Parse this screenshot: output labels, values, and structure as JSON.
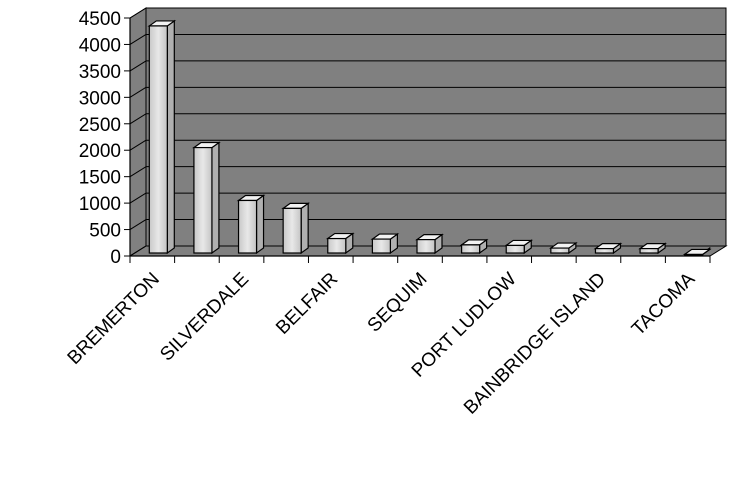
{
  "chart_data": {
    "type": "bar",
    "style": "3d-column",
    "categories": [
      "BREMERTON",
      "",
      "SILVERDALE",
      "",
      "BELFAIR",
      "",
      "SEQUIM",
      "",
      "PORT LUDLOW",
      "",
      "BAINBRIDGE ISLAND",
      "",
      "TACOMA"
    ],
    "values": [
      4350,
      2050,
      1050,
      900,
      330,
      320,
      310,
      210,
      200,
      150,
      140,
      140,
      30
    ],
    "ylim": [
      0,
      4500
    ],
    "yticks": [
      0,
      500,
      1000,
      1500,
      2000,
      2500,
      3000,
      3500,
      4000,
      4500
    ],
    "grid": true,
    "legend": "none",
    "colors": {
      "plot_background": "#808080",
      "gridline": "#000000",
      "bar_front": "#d9d9d9",
      "bar_top": "#f2f2f2",
      "bar_side": "#b0b0b0",
      "outline": "#000000"
    }
  }
}
